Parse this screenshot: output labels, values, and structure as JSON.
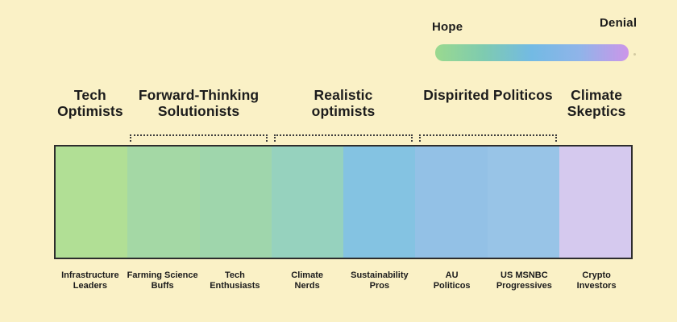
{
  "colors": {
    "background": "#FAF1C6",
    "text": "#1C1C1C",
    "bar_border": "#2D2D2D",
    "bracket_dots": "#3C3C3C"
  },
  "legend": {
    "left_label": "Hope",
    "right_label": "Denial",
    "gradient_stops": [
      "#9AD98F",
      "#7ECBB0",
      "#73BAE4",
      "#90B4E9",
      "#CC95E9"
    ]
  },
  "spectrum": {
    "axis": {
      "left_end": "Hope",
      "right_end": "Denial"
    },
    "groups": [
      {
        "name": [
          "Tech",
          "Optimists"
        ],
        "segments": [
          1,
          1
        ],
        "bracket": false
      },
      {
        "name": [
          "Forward-Thinking",
          "Solutionists"
        ],
        "segments": [
          2,
          3
        ],
        "bracket": true
      },
      {
        "name": [
          "Realistic",
          "optimists"
        ],
        "segments": [
          4,
          5
        ],
        "bracket": true
      },
      {
        "name": [
          "Dispirited Politicos"
        ],
        "segments": [
          6,
          7
        ],
        "bracket": true
      },
      {
        "name": [
          "Climate",
          "Skeptics"
        ],
        "segments": [
          8,
          8
        ],
        "bracket": false
      }
    ],
    "segments": [
      {
        "name": [
          "Infrastructure",
          "Leaders"
        ],
        "color": "#B1DF95"
      },
      {
        "name": [
          "Farming Science",
          "Buffs"
        ],
        "color": "#A4D8A5"
      },
      {
        "name": [
          "Tech",
          "Enthusiasts"
        ],
        "color": "#9FD6AC"
      },
      {
        "name": [
          "Climate",
          "Nerds"
        ],
        "color": "#96D2BE"
      },
      {
        "name": [
          "Sustainability",
          "Pros"
        ],
        "color": "#84C3E2"
      },
      {
        "name": [
          "AU",
          "Politicos"
        ],
        "color": "#93C1E6"
      },
      {
        "name": [
          "US MSNBC",
          "Progressives"
        ],
        "color": "#98C4E7"
      },
      {
        "name": [
          "Crypto",
          "Investors"
        ],
        "color": "#D5C9EE"
      }
    ]
  }
}
